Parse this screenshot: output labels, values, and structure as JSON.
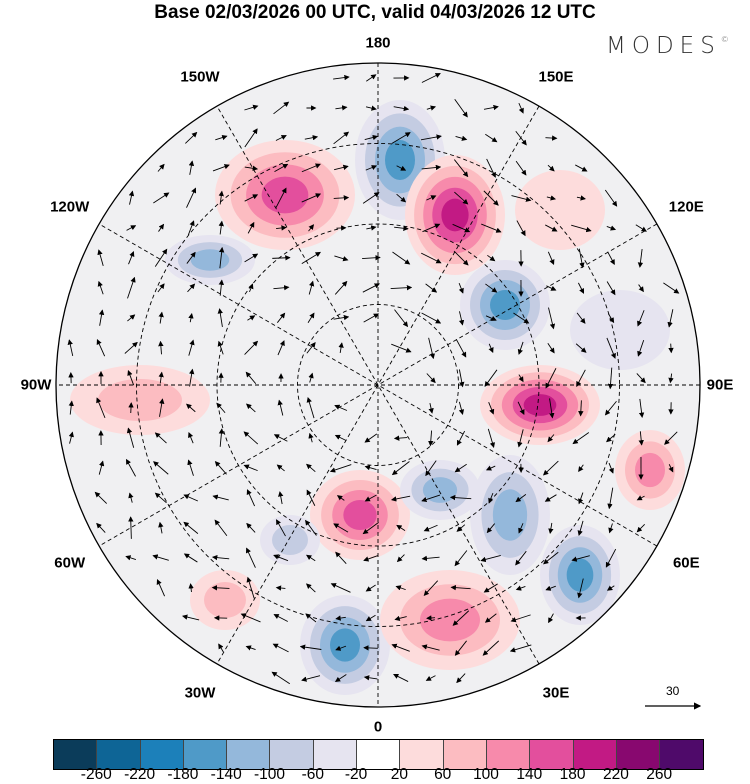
{
  "title": "Base 02/03/2026 00 UTC, valid 04/03/2026 12 UTC",
  "logo": "MODES",
  "logo_mark": "©",
  "longitude_labels": [
    "180",
    "150E",
    "120E",
    "90E",
    "60E",
    "30E",
    "0",
    "30W",
    "60W",
    "90W",
    "120W",
    "150W"
  ],
  "reference_vector": {
    "value": "30"
  },
  "colorbar": {
    "colors": [
      "#0b3c5a",
      "#0e6596",
      "#1c80ba",
      "#4f9ac8",
      "#94b8db",
      "#c4cce2",
      "#e6e4f0",
      "#ffffff",
      "#fddcdc",
      "#fcbcc1",
      "#f78aab",
      "#e34f9d",
      "#c21a84",
      "#88086f",
      "#4f0a6a"
    ],
    "ticks": [
      "-260",
      "-220",
      "-180",
      "-140",
      "-100",
      "-60",
      "-20",
      "20",
      "60",
      "100",
      "140",
      "180",
      "220",
      "260"
    ]
  }
}
